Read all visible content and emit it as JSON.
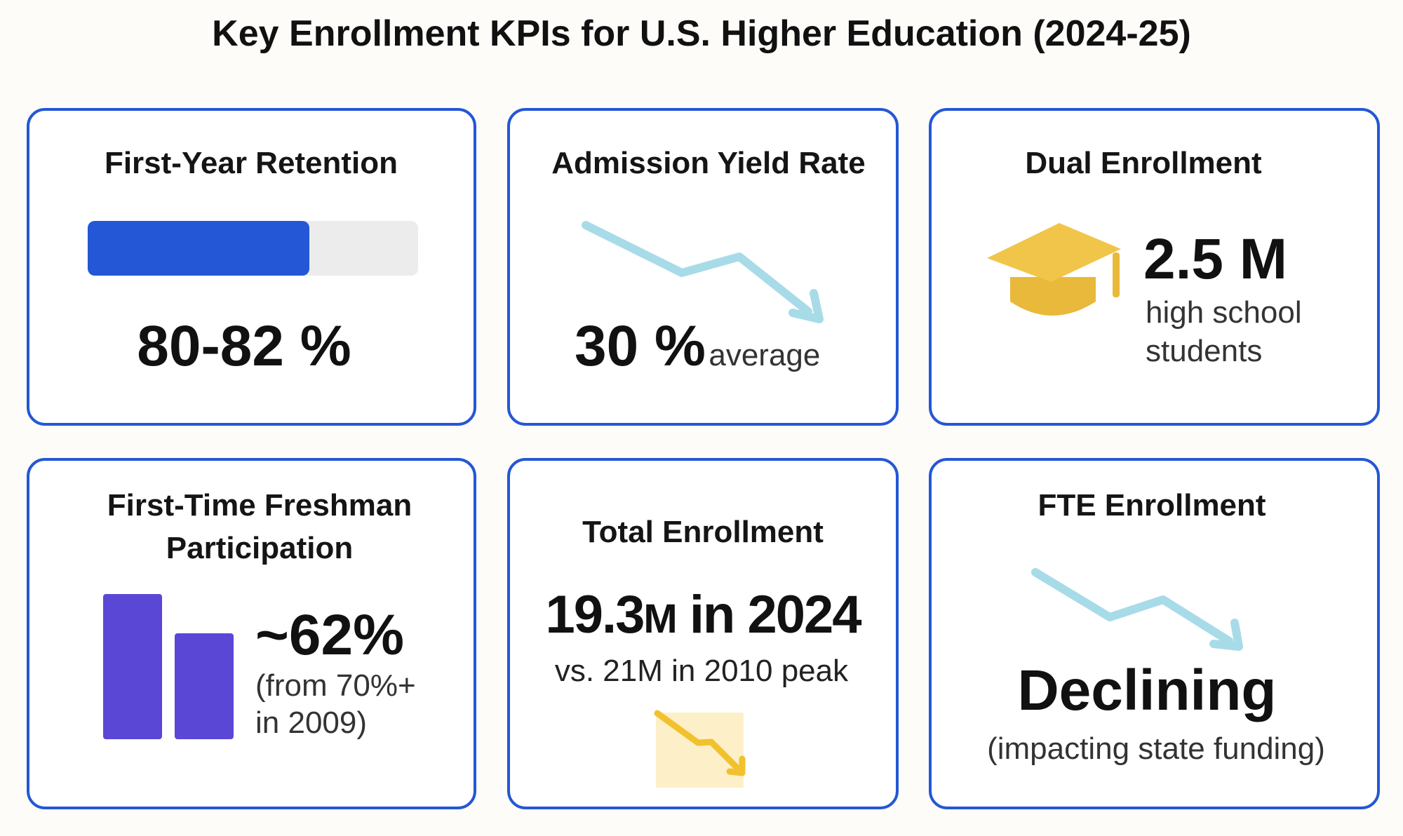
{
  "title": "Key Enrollment KPIs for U.S. Higher Education (2024-25)",
  "colors": {
    "card_border": "#2457d6",
    "progress_fill": "#2457d6",
    "progress_track": "#ececec",
    "trend_arrow": "#a8dbe8",
    "bars": "#5b47d6",
    "cap": "#f0c54a",
    "yellow_line": "#f2c12e",
    "yellow_fill": "#fdf0c8"
  },
  "cards": [
    {
      "title": "First-Year Retention",
      "value": "80-82 %",
      "progress_percent": 67,
      "icon": "progress-bar"
    },
    {
      "title": "Admission Yield Rate",
      "value": "30 %",
      "suffix": "average",
      "icon": "trend-down-arrow"
    },
    {
      "title": "Dual Enrollment",
      "value": "2.5 M",
      "line1": "high school",
      "line2": "students",
      "icon": "graduation-cap-icon"
    },
    {
      "title_line1": "First-Time Freshman",
      "title_line2": "Participation",
      "value": "~62%",
      "line1": "(from 70%+",
      "line2": "in 2009)",
      "icon": "bar-chart-decline"
    },
    {
      "title": "Total Enrollment",
      "value_num": "19.3",
      "value_unit": "M",
      "value_rest": " in 2024",
      "line1": "vs. 21M in 2010 peak",
      "icon": "area-trend-down"
    },
    {
      "title": "FTE Enrollment",
      "value": "Declining",
      "line1": "(impacting state funding)",
      "icon": "trend-down-arrow"
    }
  ]
}
